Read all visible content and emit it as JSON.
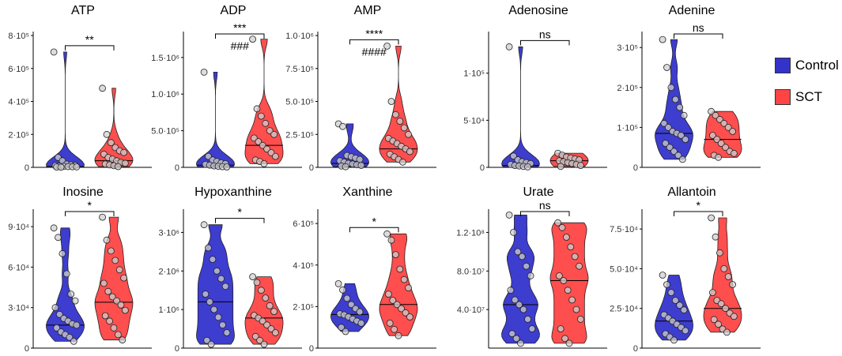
{
  "groups": [
    {
      "name": "Control",
      "color": "#3333cc"
    },
    {
      "name": "SCT",
      "color": "#ff4444"
    }
  ],
  "legend_placement": "right",
  "chart_data": [
    {
      "type": "violin",
      "title": "ATP",
      "ylim": [
        0,
        800000
      ],
      "ticks": [
        {
          "value": 0,
          "label": "0"
        },
        {
          "value": 200000,
          "label": "2·10⁵"
        },
        {
          "value": 400000,
          "label": "4·10⁵"
        },
        {
          "value": 600000,
          "label": "6·10⁵"
        },
        {
          "value": 800000,
          "label": "8·10⁵"
        }
      ],
      "annotations": [
        "**"
      ],
      "series": [
        {
          "name": "Control",
          "median": 5000,
          "points": [
            700000,
            60000,
            40000,
            20000,
            15000,
            12000,
            10000,
            8000,
            6000,
            5000,
            4000,
            3000,
            2000,
            1000
          ]
        },
        {
          "name": "SCT",
          "median": 40000,
          "points": [
            480000,
            200000,
            150000,
            120000,
            100000,
            90000,
            80000,
            60000,
            50000,
            40000,
            30000,
            25000,
            20000,
            15000,
            10000,
            5000
          ]
        }
      ]
    },
    {
      "type": "violin",
      "title": "ADP",
      "ylim": [
        0,
        1800000
      ],
      "ticks": [
        {
          "value": 0,
          "label": "0"
        },
        {
          "value": 500000,
          "label": "5.0·10⁵"
        },
        {
          "value": 1000000,
          "label": "1.0·10⁶"
        },
        {
          "value": 1500000,
          "label": "1.5·10⁶"
        }
      ],
      "annotations": [
        "***",
        "###"
      ],
      "series": [
        {
          "name": "Control",
          "median": 30000,
          "points": [
            1300000,
            150000,
            100000,
            80000,
            60000,
            50000,
            40000,
            30000,
            20000,
            15000,
            10000,
            5000
          ]
        },
        {
          "name": "SCT",
          "median": 300000,
          "points": [
            1750000,
            800000,
            700000,
            600000,
            500000,
            450000,
            400000,
            350000,
            300000,
            250000,
            200000,
            150000,
            100000,
            80000,
            50000
          ]
        }
      ]
    },
    {
      "type": "violin",
      "title": "AMP",
      "ylim": [
        0,
        1000000
      ],
      "ticks": [
        {
          "value": 0,
          "label": "0"
        },
        {
          "value": 250000,
          "label": "2.5·10⁵"
        },
        {
          "value": 500000,
          "label": "5.0·10⁵"
        },
        {
          "value": 750000,
          "label": "7.5·10⁵"
        },
        {
          "value": 1000000,
          "label": "1.0·10⁶"
        }
      ],
      "annotations": [
        "****",
        "####"
      ],
      "series": [
        {
          "name": "Control",
          "median": 30000,
          "points": [
            330000,
            310000,
            90000,
            80000,
            70000,
            60000,
            50000,
            40000,
            30000,
            25000,
            20000,
            15000,
            10000,
            5000
          ]
        },
        {
          "name": "SCT",
          "median": 140000,
          "points": [
            920000,
            500000,
            400000,
            350000,
            300000,
            250000,
            220000,
            200000,
            180000,
            160000,
            140000,
            120000,
            100000,
            80000,
            60000,
            40000
          ]
        }
      ]
    },
    {
      "type": "violin",
      "title": "Adenosine",
      "ylim": [
        0,
        140000
      ],
      "ticks": [
        {
          "value": 0,
          "label": "0"
        },
        {
          "value": 50000,
          "label": "5·10⁴"
        },
        {
          "value": 100000,
          "label": "1·10⁵"
        }
      ],
      "annotations": [
        "ns"
      ],
      "series": [
        {
          "name": "Control",
          "median": 2000,
          "points": [
            128000,
            12000,
            8000,
            6000,
            5000,
            4000,
            3000,
            2000,
            1500,
            1000,
            500
          ]
        },
        {
          "name": "SCT",
          "median": 7000,
          "points": [
            15000,
            13000,
            11000,
            10000,
            9000,
            8000,
            7000,
            6000,
            5000,
            4000,
            3000,
            2000,
            1000
          ]
        }
      ]
    },
    {
      "type": "violin",
      "title": "Adenine",
      "ylim": [
        0,
        330000
      ],
      "ticks": [
        {
          "value": 0,
          "label": "0"
        },
        {
          "value": 100000,
          "label": "1·10⁵"
        },
        {
          "value": 200000,
          "label": "2·10⁵"
        },
        {
          "value": 300000,
          "label": "3·10⁵"
        }
      ],
      "annotations": [
        "ns"
      ],
      "series": [
        {
          "name": "Control",
          "median": 85000,
          "points": [
            320000,
            250000,
            200000,
            170000,
            150000,
            130000,
            110000,
            100000,
            90000,
            85000,
            80000,
            70000,
            60000,
            50000,
            40000,
            30000,
            20000
          ]
        },
        {
          "name": "SCT",
          "median": 70000,
          "points": [
            140000,
            130000,
            120000,
            110000,
            100000,
            90000,
            80000,
            70000,
            60000,
            50000,
            40000,
            35000,
            30000,
            25000
          ]
        }
      ]
    },
    {
      "type": "violin",
      "title": "Inosine",
      "ylim": [
        0,
        100000
      ],
      "ticks": [
        {
          "value": 0,
          "label": "0"
        },
        {
          "value": 30000,
          "label": "3·10⁴"
        },
        {
          "value": 60000,
          "label": "6·10⁴"
        },
        {
          "value": 90000,
          "label": "9·10⁴"
        }
      ],
      "annotations": [
        "*"
      ],
      "series": [
        {
          "name": "Control",
          "median": 17000,
          "points": [
            89000,
            82000,
            70000,
            55000,
            40000,
            35000,
            30000,
            25000,
            22000,
            20000,
            18000,
            17000,
            15000,
            12000,
            10000,
            8000,
            5000
          ]
        },
        {
          "name": "SCT",
          "median": 34000,
          "points": [
            97000,
            80000,
            72000,
            65000,
            58000,
            52000,
            48000,
            42000,
            38000,
            35000,
            32000,
            28000,
            24000,
            20000,
            15000,
            10000,
            6000
          ]
        }
      ]
    },
    {
      "type": "violin",
      "title": "Hypoxanthine",
      "ylim": [
        0,
        3500000
      ],
      "ticks": [
        {
          "value": 0,
          "label": "0"
        },
        {
          "value": 1000000,
          "label": "1·10⁶"
        },
        {
          "value": 2000000,
          "label": "2·10⁶"
        },
        {
          "value": 3000000,
          "label": "3·10⁶"
        }
      ],
      "annotations": [
        "*"
      ],
      "series": [
        {
          "name": "Control",
          "median": 1200000,
          "points": [
            3200000,
            2600000,
            2300000,
            2000000,
            1800000,
            1600000,
            1400000,
            1200000,
            1000000,
            800000,
            600000,
            400000,
            200000,
            100000
          ]
        },
        {
          "name": "SCT",
          "median": 780000,
          "points": [
            1850000,
            1700000,
            1500000,
            1300000,
            1100000,
            950000,
            850000,
            780000,
            700000,
            600000,
            500000,
            400000,
            300000,
            200000,
            100000
          ]
        }
      ]
    },
    {
      "type": "violin",
      "title": "Xanthine",
      "ylim": [
        0,
        650000
      ],
      "ticks": [
        {
          "value": 0,
          "label": "0"
        },
        {
          "value": 200000,
          "label": "2·10⁵"
        },
        {
          "value": 400000,
          "label": "4·10⁵"
        },
        {
          "value": 600000,
          "label": "6·10⁵"
        }
      ],
      "annotations": [
        "*"
      ],
      "series": [
        {
          "name": "Control",
          "median": 162000,
          "points": [
            310000,
            280000,
            240000,
            210000,
            190000,
            175000,
            165000,
            160000,
            150000,
            140000,
            130000,
            120000,
            100000,
            80000
          ]
        },
        {
          "name": "SCT",
          "median": 210000,
          "points": [
            550000,
            520000,
            450000,
            380000,
            330000,
            290000,
            260000,
            230000,
            210000,
            190000,
            170000,
            150000,
            120000,
            90000,
            60000
          ]
        }
      ]
    },
    {
      "type": "violin",
      "title": "Urate",
      "ylim": [
        0,
        140000000
      ],
      "ticks": [
        {
          "value": 40000000,
          "label": "4.0·10⁷"
        },
        {
          "value": 80000000,
          "label": "8.0·10⁷"
        },
        {
          "value": 120000000,
          "label": "1.2·10⁸"
        }
      ],
      "annotations": [
        "ns"
      ],
      "series": [
        {
          "name": "Control",
          "median": 45000000,
          "points": [
            138000000,
            120000000,
            100000000,
            95000000,
            85000000,
            75000000,
            60000000,
            50000000,
            45000000,
            40000000,
            30000000,
            20000000,
            15000000,
            10000000,
            5000000
          ]
        },
        {
          "name": "SCT",
          "median": 70000000,
          "points": [
            130000000,
            125000000,
            115000000,
            105000000,
            95000000,
            85000000,
            75000000,
            70000000,
            60000000,
            50000000,
            40000000,
            30000000,
            20000000,
            10000000,
            5000000
          ]
        }
      ]
    },
    {
      "type": "violin",
      "title": "Allantoin",
      "ylim": [
        0,
        85000
      ],
      "ticks": [
        {
          "value": 0,
          "label": "0"
        },
        {
          "value": 25000,
          "label": "2.5·10⁴"
        },
        {
          "value": 50000,
          "label": "5.0·10⁴"
        },
        {
          "value": 75000,
          "label": "7.5·10⁴"
        }
      ],
      "annotations": [
        "*"
      ],
      "series": [
        {
          "name": "Control",
          "median": 17000,
          "points": [
            46000,
            40000,
            35000,
            30000,
            27000,
            24000,
            21000,
            19000,
            17000,
            15000,
            13000,
            11000,
            9000,
            7000,
            5000
          ]
        },
        {
          "name": "SCT",
          "median": 25000,
          "points": [
            82000,
            70000,
            60000,
            50000,
            45000,
            40000,
            35000,
            30000,
            28000,
            25000,
            22000,
            20000,
            18000,
            15000,
            12000,
            10000
          ]
        }
      ]
    }
  ]
}
